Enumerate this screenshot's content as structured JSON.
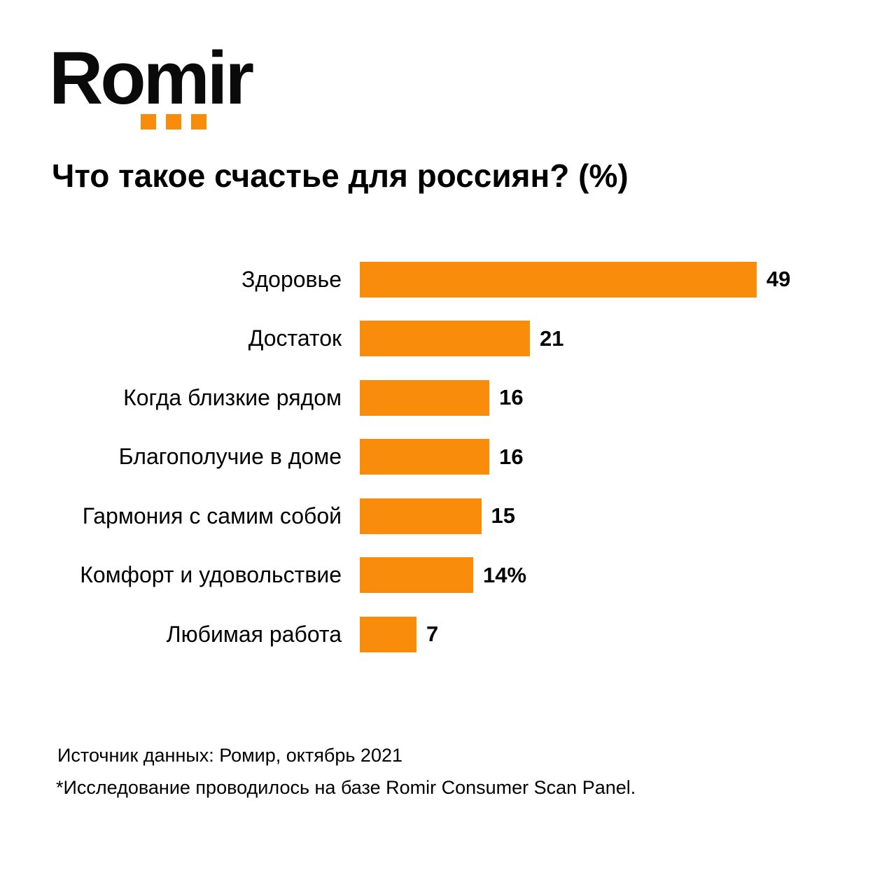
{
  "logo": {
    "text": "Romir",
    "dot_color": "#FA8C0B",
    "dot_count": 3
  },
  "title": "Что такое счастье для россиян? (%)",
  "chart_data": {
    "type": "bar",
    "orientation": "horizontal",
    "title": "Что такое счастье для россиян? (%)",
    "categories": [
      "Здоровье",
      "Достаток",
      "Когда близкие рядом",
      "Благополучие в доме",
      "Гармония с самим собой",
      "Комфорт и удовольствие",
      "Любимая работа"
    ],
    "values": [
      49,
      21,
      16,
      16,
      15,
      14,
      7
    ],
    "value_labels": [
      "49",
      "21",
      "16",
      "16",
      "15",
      "14%",
      "7"
    ],
    "bar_color": "#FA8C0B",
    "xlabel": "",
    "ylabel": "",
    "xlim": [
      0,
      49
    ],
    "grid": false,
    "legend": false,
    "value_unit": "%"
  },
  "footer": {
    "source_line": "Источник данных: Ромир, октябрь 2021",
    "note_line": "*Исследование проводилось на базе Romir Consumer Scan Panel."
  }
}
